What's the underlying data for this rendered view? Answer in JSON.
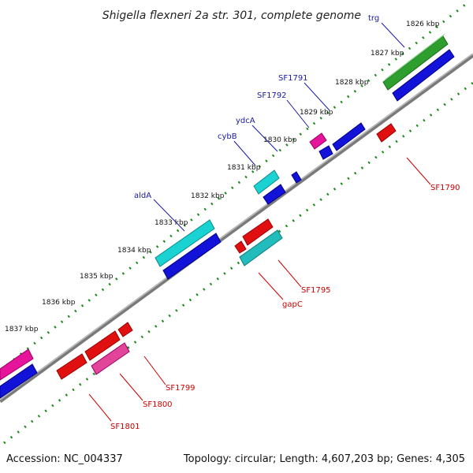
{
  "title": "Shigella flexneri 2a str. 301, complete genome",
  "footer": {
    "accession": "Accession: NC_004337",
    "topology": "Topology: circular; Length: 4,607,203 bp; Genes: 4,305"
  },
  "colors": {
    "backbone": "#8a8a8a",
    "dots": "#1a8a1a",
    "label_forward": "#1a1aa0",
    "label_reverse": "#cc0000"
  },
  "ruler": [
    "1826 kbp",
    "1827 kbp",
    "1828 kbp",
    "1829 kbp",
    "1830 kbp",
    "1831 kbp",
    "1832 kbp",
    "1833 kbp",
    "1834 kbp",
    "1835 kbp",
    "1836 kbp",
    "1837 kbp"
  ],
  "gene_labels_top": [
    "trg",
    "SF1791",
    "SF1792",
    "ydcA",
    "cybB",
    "aldA"
  ],
  "gene_labels_bottom": [
    "SF1790",
    "SF1795",
    "gapC",
    "SF1799",
    "SF1800",
    "SF1801"
  ]
}
